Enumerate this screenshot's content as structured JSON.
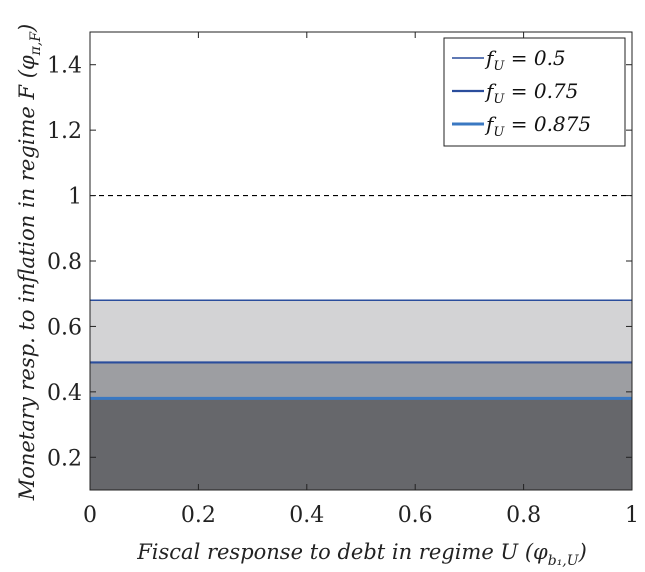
{
  "chart_data": {
    "type": "area",
    "xlabel": "Fiscal response to debt in regime U",
    "xlabel_symbol": "(φ_{b1,U})",
    "ylabel": "Monetary resp. to inflation in regime F",
    "ylabel_symbol": "(φ_{π,F})",
    "xlim": [
      0,
      1
    ],
    "ylim": [
      0.1,
      1.5
    ],
    "xticks": [
      0,
      0.2,
      0.4,
      0.6,
      0.8,
      1
    ],
    "xtick_labels": [
      "0",
      "0.2",
      "0.4",
      "0.6",
      "0.8",
      "1"
    ],
    "yticks": [
      0.2,
      0.4,
      0.6,
      0.8,
      1,
      1.2,
      1.4
    ],
    "ytick_labels": [
      "0.2",
      "0.4",
      "0.6",
      "0.8",
      "1",
      "1.2",
      "1.4"
    ],
    "reference_line": {
      "y": 1.0,
      "style": "dashed",
      "color": "#000000"
    },
    "series": [
      {
        "name": "f_U = 0.5",
        "legend_text": "= 0.5",
        "x": [
          0,
          1
        ],
        "y": [
          0.68,
          0.68
        ],
        "fill": "#d3d3d5",
        "line_color": "#2a4d9c",
        "line_width": 1.5
      },
      {
        "name": "f_U = 0.75",
        "legend_text": "= 0.75",
        "x": [
          0,
          1
        ],
        "y": [
          0.49,
          0.49
        ],
        "fill": "#9d9ea2",
        "line_color": "#2a4d9c",
        "line_width": 2.2
      },
      {
        "name": "f_U = 0.875",
        "legend_text": "= 0.875",
        "x": [
          0,
          1
        ],
        "y": [
          0.38,
          0.38
        ],
        "fill": "#66676b",
        "line_color": "#3a78c2",
        "line_width": 3
      }
    ],
    "legend": {
      "placement": "top-right",
      "symbol": "f",
      "subscript": "U"
    },
    "grid": false
  }
}
